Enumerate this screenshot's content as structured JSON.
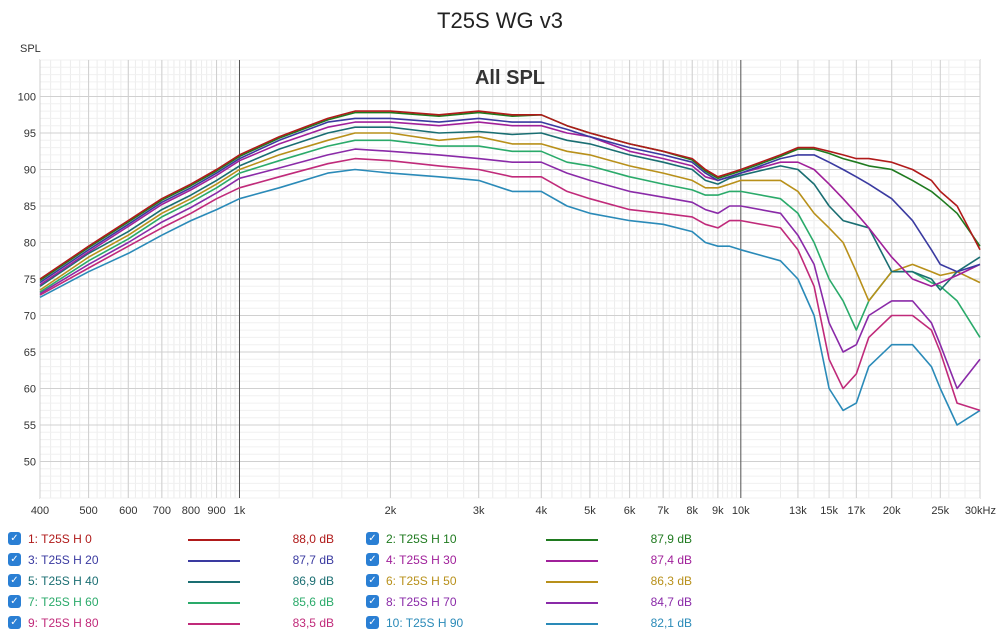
{
  "chart_data": {
    "type": "line",
    "title": "T25S WG v3",
    "subtitle": "All SPL",
    "ylabel": "SPL",
    "xlabel": "",
    "xscale": "log",
    "xlim": [
      400,
      30000
    ],
    "ylim": [
      45,
      105
    ],
    "grid": true,
    "y_ticks": [
      50,
      55,
      60,
      65,
      70,
      75,
      80,
      85,
      90,
      95,
      100
    ],
    "x_ticks": [
      {
        "value": 400,
        "label": "400"
      },
      {
        "value": 500,
        "label": "500"
      },
      {
        "value": 600,
        "label": "600"
      },
      {
        "value": 700,
        "label": "700"
      },
      {
        "value": 800,
        "label": "800"
      },
      {
        "value": 900,
        "label": "900"
      },
      {
        "value": 1000,
        "label": "1k"
      },
      {
        "value": 2000,
        "label": "2k"
      },
      {
        "value": 3000,
        "label": "3k"
      },
      {
        "value": 4000,
        "label": "4k"
      },
      {
        "value": 5000,
        "label": "5k"
      },
      {
        "value": 6000,
        "label": "6k"
      },
      {
        "value": 7000,
        "label": "7k"
      },
      {
        "value": 8000,
        "label": "8k"
      },
      {
        "value": 9000,
        "label": "9k"
      },
      {
        "value": 10000,
        "label": "10k"
      },
      {
        "value": 13000,
        "label": "13k"
      },
      {
        "value": 15000,
        "label": "15k"
      },
      {
        "value": 17000,
        "label": "17k"
      },
      {
        "value": 20000,
        "label": "20k"
      },
      {
        "value": 25000,
        "label": "25k"
      },
      {
        "value": 30000,
        "label": "30kHz"
      }
    ],
    "x": [
      400,
      500,
      600,
      700,
      800,
      900,
      1000,
      1200,
      1500,
      1700,
      2000,
      2500,
      3000,
      3500,
      4000,
      4500,
      5000,
      6000,
      7000,
      8000,
      8500,
      9000,
      9500,
      10000,
      12000,
      13000,
      14000,
      15000,
      16000,
      17000,
      18000,
      20000,
      22000,
      24000,
      25000,
      27000,
      30000
    ],
    "series": [
      {
        "name": "1: T25S H 0",
        "value": "88,0 dB",
        "color": "#b01a1a",
        "values": [
          75.0,
          79.5,
          83,
          86,
          88,
          90,
          92,
          94.5,
          97,
          98,
          98,
          97.5,
          98,
          97.5,
          97.5,
          96,
          95,
          93.5,
          92.5,
          91.5,
          90,
          89,
          89.5,
          90,
          92,
          93,
          93,
          92.5,
          92,
          91.5,
          91.5,
          91,
          90,
          88.5,
          87,
          85,
          79
        ]
      },
      {
        "name": "2: T25S H 10",
        "value": "87,9 dB",
        "color": "#1f7a1f",
        "values": [
          74.8,
          79.3,
          82.8,
          85.8,
          87.8,
          89.8,
          91.8,
          94.3,
          96.8,
          97.8,
          97.8,
          97.3,
          97.8,
          97.3,
          97.5,
          96,
          95,
          93.5,
          92.5,
          91.3,
          89.8,
          88.8,
          89.3,
          89.8,
          91.8,
          92.8,
          92.8,
          92.2,
          91.5,
          91,
          90.5,
          90,
          88.5,
          87,
          86,
          84,
          79.5
        ]
      },
      {
        "name": "3: T25S H 20",
        "value": "87,7 dB",
        "color": "#3a3aa0",
        "values": [
          74.5,
          79,
          82.5,
          85.5,
          87.5,
          89.5,
          91.5,
          94,
          96.5,
          97,
          97,
          96.5,
          97,
          96.5,
          96.5,
          95.5,
          94.5,
          93,
          92,
          91,
          89.5,
          88.5,
          89,
          89.5,
          91.5,
          92,
          92,
          91,
          90,
          89,
          88,
          86,
          83,
          79,
          77,
          76,
          77
        ]
      },
      {
        "name": "4: T25S H 30",
        "value": "87,4 dB",
        "color": "#a0209a",
        "values": [
          74.2,
          78.7,
          82.2,
          85.2,
          87.2,
          89.2,
          91.2,
          93.5,
          95.8,
          96.5,
          96.5,
          96,
          96.5,
          96,
          96,
          95,
          94.5,
          92.5,
          91.5,
          90.5,
          89,
          88.5,
          89,
          89.5,
          91,
          91,
          90,
          88,
          86,
          84,
          82,
          78,
          75,
          74,
          74.5,
          75.5,
          77
        ]
      },
      {
        "name": "5: T25S H 40",
        "value": "86,9 dB",
        "color": "#1a6e72",
        "values": [
          74,
          78.5,
          81.5,
          84.5,
          86.5,
          88.5,
          90.5,
          92.8,
          95,
          95.8,
          95.8,
          95,
          95.2,
          94.8,
          95,
          94,
          93.5,
          92,
          91,
          90,
          88.5,
          88,
          88.8,
          89.2,
          90.5,
          90,
          88,
          85,
          83,
          82.5,
          82,
          76,
          76,
          75,
          73.5,
          76,
          78
        ]
      },
      {
        "name": "6: T25S H 50",
        "value": "86,3 dB",
        "color": "#b8901a",
        "values": [
          73.5,
          78,
          81,
          84,
          86,
          88,
          90,
          92,
          94,
          95,
          95,
          94,
          94.5,
          93.5,
          93.5,
          92.5,
          92,
          90.5,
          89.5,
          88.5,
          87.5,
          87.5,
          88,
          88.5,
          88.5,
          87,
          84,
          82,
          80,
          76,
          72,
          76,
          77,
          76,
          75.5,
          76,
          74.5
        ]
      },
      {
        "name": "7: T25S H 60",
        "value": "85,6 dB",
        "color": "#2aaa6a",
        "values": [
          73.2,
          77.5,
          80.5,
          83.5,
          85.5,
          87.5,
          89.5,
          91.2,
          93.2,
          94,
          94,
          93.2,
          93.2,
          92.5,
          92.5,
          91,
          90.5,
          89,
          88,
          87.2,
          86.5,
          86.5,
          87,
          87,
          86,
          84,
          80,
          75,
          72,
          68,
          72,
          76,
          76,
          74.5,
          74,
          72,
          67
        ]
      },
      {
        "name": "8: T25S H 70",
        "value": "84,7 dB",
        "color": "#8a2aa8",
        "values": [
          73,
          77,
          80,
          82.8,
          84.8,
          86.8,
          88.8,
          90.2,
          92,
          92.8,
          92.5,
          92,
          91.5,
          91,
          91,
          89.5,
          88.5,
          87,
          86.2,
          85.5,
          84.5,
          84,
          85,
          85,
          84,
          81,
          77,
          69,
          65,
          66,
          70,
          72,
          72,
          69,
          66,
          60,
          64
        ]
      },
      {
        "name": "9: T25S H 80",
        "value": "83,5 dB",
        "color": "#c02a7a",
        "values": [
          72.8,
          76.5,
          79.5,
          82,
          84,
          86,
          87.5,
          89,
          90.8,
          91.5,
          91.2,
          90.5,
          90,
          89,
          89,
          87,
          86,
          84.5,
          84,
          83.5,
          82.5,
          82,
          83,
          83,
          82,
          79,
          74,
          64,
          60,
          62,
          67,
          70,
          70,
          68,
          65,
          58,
          57
        ]
      },
      {
        "name": "10: T25S H 90",
        "value": "82,1 dB",
        "color": "#2a8ab8",
        "values": [
          72.5,
          76,
          78.5,
          81,
          83,
          84.5,
          86,
          87.5,
          89.5,
          90,
          89.5,
          89,
          88.5,
          87,
          87,
          85,
          84,
          83,
          82.5,
          81.5,
          80,
          79.5,
          79.5,
          79,
          77.5,
          75,
          70,
          60,
          57,
          58,
          63,
          66,
          66,
          63,
          60,
          55,
          57
        ]
      }
    ]
  }
}
